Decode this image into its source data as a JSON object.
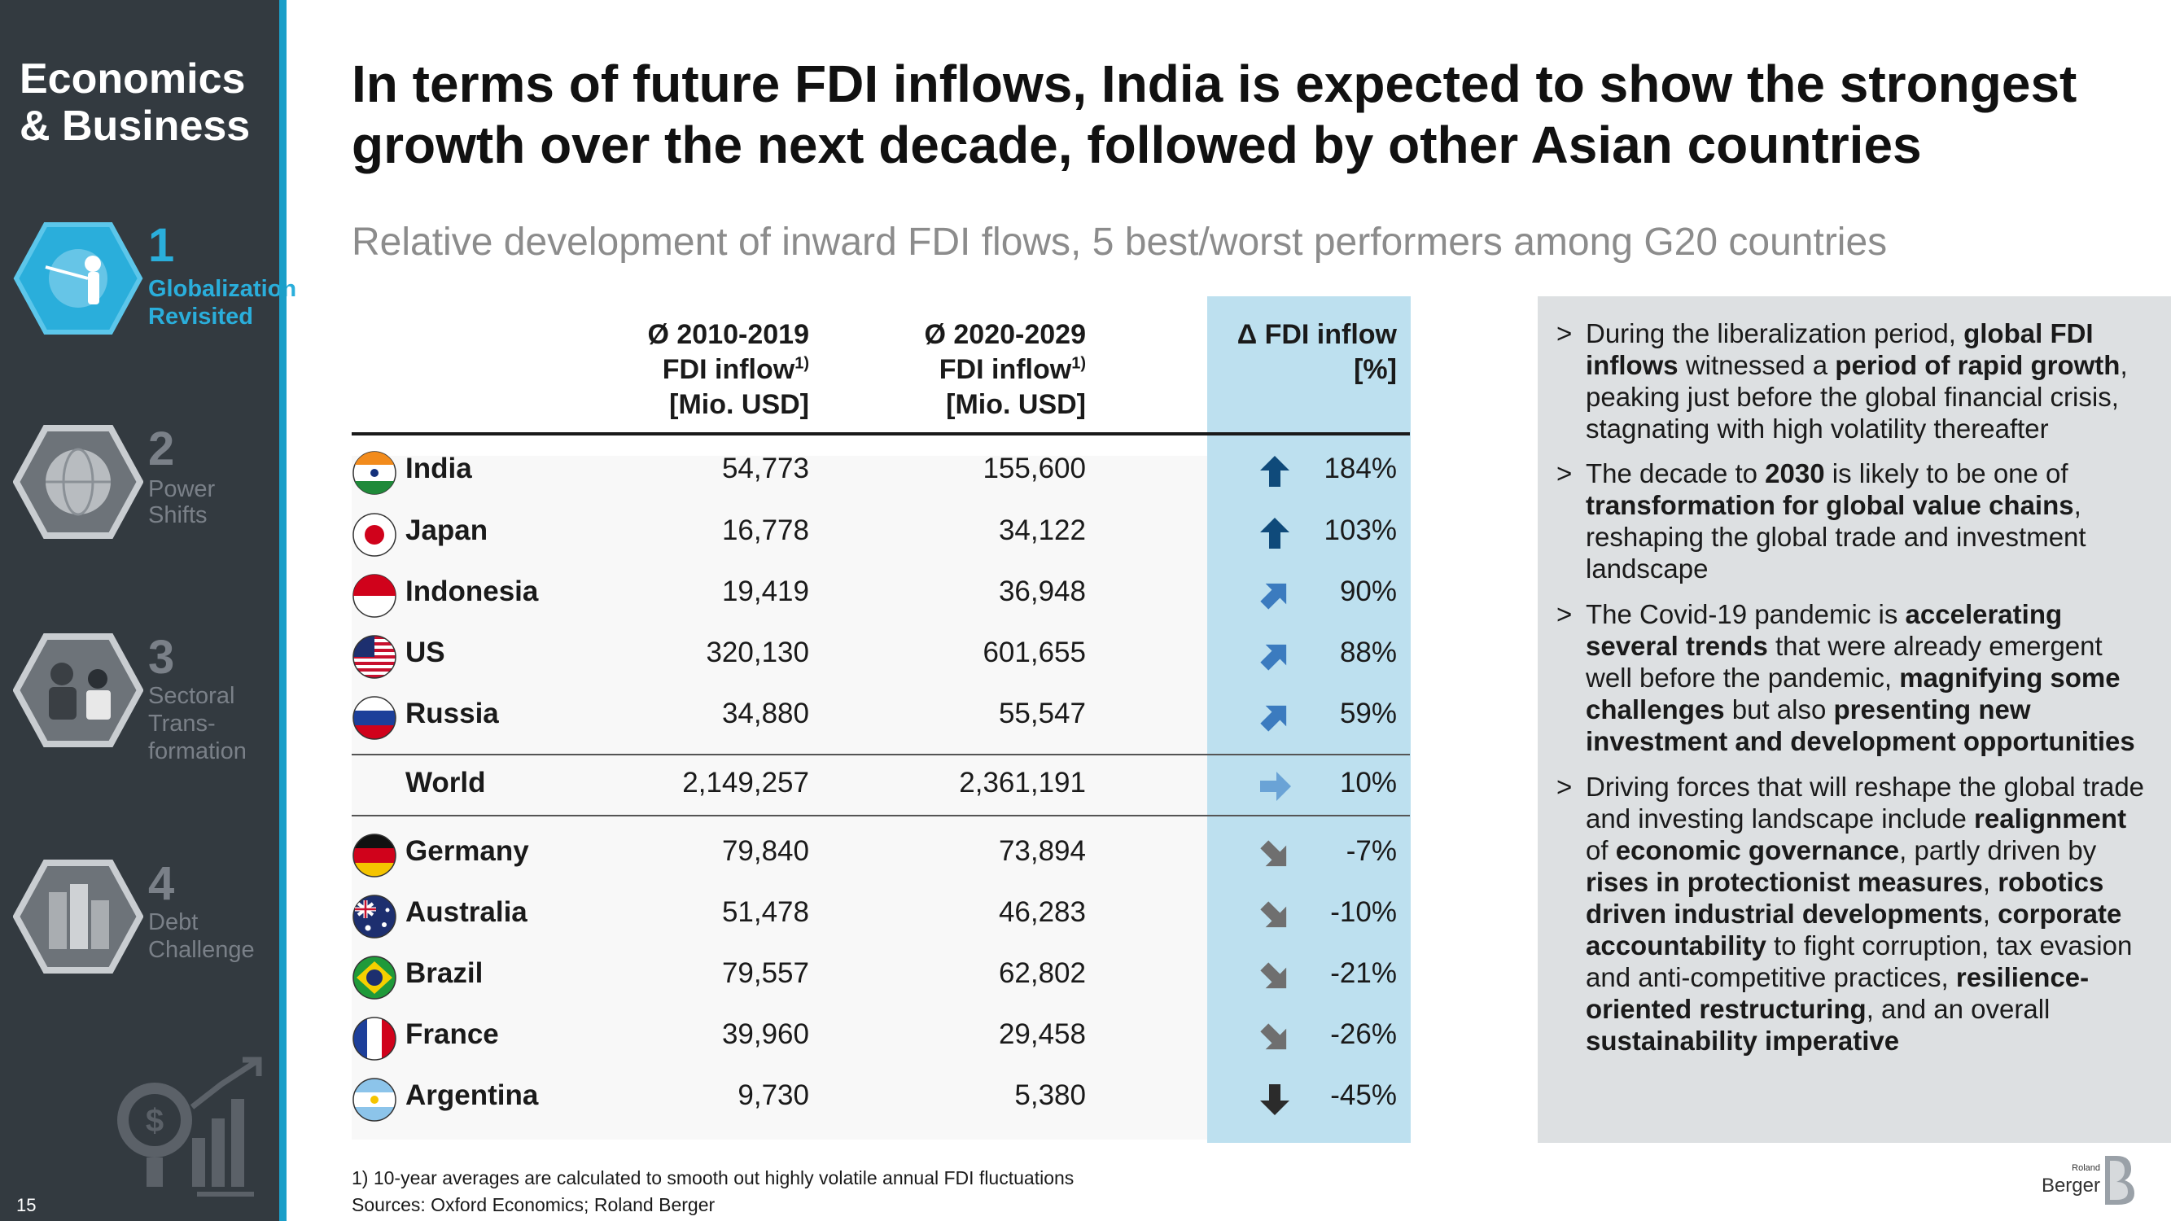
{
  "sidebar": {
    "brand_line1": "Economics",
    "brand_line2": "& Business",
    "page_number": "15",
    "items": [
      {
        "num": "1",
        "label_line1": "Globalization",
        "label_line2": "Revisited",
        "label_line3": ""
      },
      {
        "num": "2",
        "label_line1": "Power",
        "label_line2": "Shifts",
        "label_line3": ""
      },
      {
        "num": "3",
        "label_line1": "Sectoral",
        "label_line2": "Trans-",
        "label_line3": "formation"
      },
      {
        "num": "4",
        "label_line1": "Debt",
        "label_line2": "Challenge",
        "label_line3": ""
      }
    ]
  },
  "header": {
    "title_line1": "In terms of future FDI inflows, India is expected to show the strongest",
    "title_line2": "growth over the next decade, followed by other Asian countries",
    "subtitle": "Relative development of inward FDI flows, 5 best/worst performers among G20 countries"
  },
  "colors": {
    "sidebar": "#333a40",
    "accent": "#1a9fc9",
    "delta_column": "#bde0ef",
    "arrow_up": "#0f4a7a",
    "arrow_flat": "#6aa3d6",
    "arrow_down": "#6f6f6f",
    "panel": "#dde0e2"
  },
  "chart_data": {
    "type": "table",
    "title": "Relative development of inward FDI flows, 5 best/worst performers among G20 countries",
    "columns": [
      {
        "line1": "Ø 2010-2019",
        "line2": "FDI inflow",
        "sup": "1)",
        "line3": "[Mio. USD]"
      },
      {
        "line1": "Ø 2020-2029",
        "line2": "FDI inflow",
        "sup": "1)",
        "line3": "[Mio. USD]"
      },
      {
        "line1": "Δ FDI inflow",
        "line2": "[%]"
      }
    ],
    "rows": [
      {
        "country": "India",
        "fdi_2010_2019": "54,773",
        "fdi_2020_2029": "155,600",
        "delta": "184%",
        "trend": "up"
      },
      {
        "country": "Japan",
        "fdi_2010_2019": "16,778",
        "fdi_2020_2029": "34,122",
        "delta": "103%",
        "trend": "up"
      },
      {
        "country": "Indonesia",
        "fdi_2010_2019": "19,419",
        "fdi_2020_2029": "36,948",
        "delta": "90%",
        "trend": "up-right"
      },
      {
        "country": "US",
        "fdi_2010_2019": "320,130",
        "fdi_2020_2029": "601,655",
        "delta": "88%",
        "trend": "up-right"
      },
      {
        "country": "Russia",
        "fdi_2010_2019": "34,880",
        "fdi_2020_2029": "55,547",
        "delta": "59%",
        "trend": "up-right"
      },
      {
        "country": "World",
        "fdi_2010_2019": "2,149,257",
        "fdi_2020_2029": "2,361,191",
        "delta": "10%",
        "trend": "right"
      },
      {
        "country": "Germany",
        "fdi_2010_2019": "79,840",
        "fdi_2020_2029": "73,894",
        "delta": "-7%",
        "trend": "down-right"
      },
      {
        "country": "Australia",
        "fdi_2010_2019": "51,478",
        "fdi_2020_2029": "46,283",
        "delta": "-10%",
        "trend": "down-right"
      },
      {
        "country": "Brazil",
        "fdi_2010_2019": "79,557",
        "fdi_2020_2029": "62,802",
        "delta": "-21%",
        "trend": "down-right"
      },
      {
        "country": "France",
        "fdi_2010_2019": "39,960",
        "fdi_2020_2029": "29,458",
        "delta": "-26%",
        "trend": "down-right"
      },
      {
        "country": "Argentina",
        "fdi_2010_2019": "9,730",
        "fdi_2020_2029": "5,380",
        "delta": "-45%",
        "trend": "down"
      }
    ]
  },
  "footnote": "1) 10-year averages are calculated to smooth out highly volatile annual FDI fluctuations",
  "source": "Sources: Oxford Economics; Roland Berger",
  "panel": {
    "marker": ">",
    "bullets": [
      [
        {
          "t": "During the liberalization period, ",
          "b": false
        },
        {
          "t": "global FDI inflows",
          "b": true
        },
        {
          "t": " witnessed a ",
          "b": false
        },
        {
          "t": "period of rapid growth",
          "b": true
        },
        {
          "t": ", peaking just before the global financial crisis, stagnating with high volatility thereafter",
          "b": false
        }
      ],
      [
        {
          "t": "The decade to ",
          "b": false
        },
        {
          "t": "2030",
          "b": true
        },
        {
          "t": " is likely to be one of ",
          "b": false
        },
        {
          "t": "transformation for global value chains",
          "b": true
        },
        {
          "t": ", reshaping the global trade and investment landscape",
          "b": false
        }
      ],
      [
        {
          "t": "The Covid-19 pandemic is ",
          "b": false
        },
        {
          "t": "accelerating several trends",
          "b": true
        },
        {
          "t": " that were already emergent well before the pandemic, ",
          "b": false
        },
        {
          "t": "magnifying some challenges",
          "b": true
        },
        {
          "t": " but also ",
          "b": false
        },
        {
          "t": "presenting new investment and development opportunities",
          "b": true
        }
      ],
      [
        {
          "t": "Driving forces that will reshape the global trade and investing landscape include ",
          "b": false
        },
        {
          "t": "realignment",
          "b": true
        },
        {
          "t": " of ",
          "b": false
        },
        {
          "t": "economic governance",
          "b": true
        },
        {
          "t": ", partly driven by ",
          "b": false
        },
        {
          "t": "rises in protectionist measures",
          "b": true
        },
        {
          "t": ", ",
          "b": false
        },
        {
          "t": "robotics driven industrial developments",
          "b": true
        },
        {
          "t": ", ",
          "b": false
        },
        {
          "t": "corporate accountability",
          "b": true
        },
        {
          "t": " to fight corruption, tax evasion and anti-competitive practices, ",
          "b": false
        },
        {
          "t": "resilience-oriented restructuring",
          "b": true
        },
        {
          "t": ", and an overall ",
          "b": false
        },
        {
          "t": "sustainability imperative",
          "b": true
        }
      ]
    ]
  },
  "logo": {
    "small": "Roland",
    "large": "Berger"
  }
}
